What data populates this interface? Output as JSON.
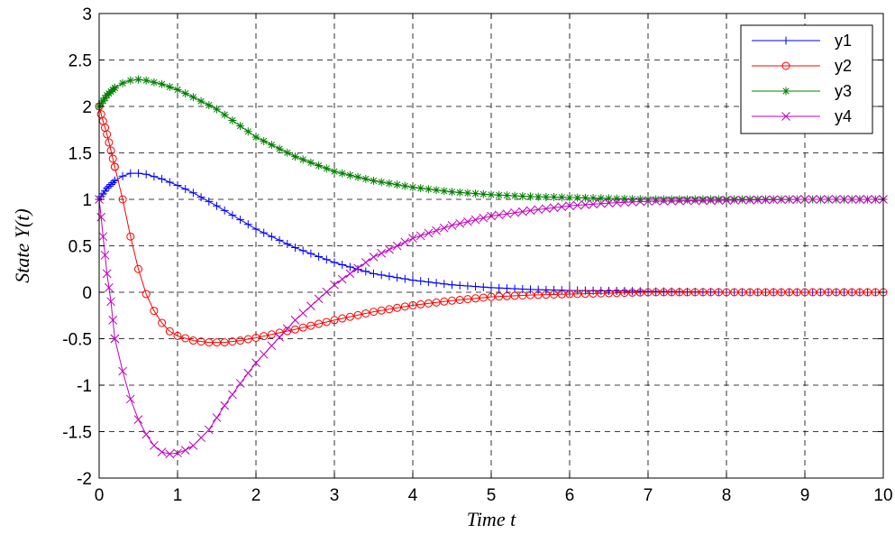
{
  "chart_data": {
    "type": "line",
    "title": "",
    "xlabel": "Time t",
    "ylabel": "State Y(t)",
    "xlim": [
      0,
      10
    ],
    "ylim": [
      -2,
      3
    ],
    "xticks": [
      0,
      1,
      2,
      3,
      4,
      5,
      6,
      7,
      8,
      9,
      10
    ],
    "yticks": [
      -2,
      -1.5,
      -1,
      -0.5,
      0,
      0.5,
      1,
      1.5,
      2,
      2.5,
      3
    ],
    "grid": true,
    "legend_position": "top-right",
    "series": [
      {
        "name": "y1",
        "color": "#0000ff",
        "marker": "plus",
        "points": [
          [
            0,
            1.0
          ],
          [
            0.1,
            1.12
          ],
          [
            0.2,
            1.2
          ],
          [
            0.3,
            1.25
          ],
          [
            0.4,
            1.28
          ],
          [
            0.5,
            1.28
          ],
          [
            0.6,
            1.27
          ],
          [
            0.8,
            1.22
          ],
          [
            1.0,
            1.15
          ],
          [
            1.2,
            1.07
          ],
          [
            1.5,
            0.93
          ],
          [
            2.0,
            0.68
          ],
          [
            2.5,
            0.48
          ],
          [
            3.0,
            0.32
          ],
          [
            3.5,
            0.2
          ],
          [
            4.0,
            0.13
          ],
          [
            4.5,
            0.08
          ],
          [
            5.0,
            0.05
          ],
          [
            5.5,
            0.03
          ],
          [
            6.0,
            0.02
          ],
          [
            7.0,
            0.01
          ],
          [
            8.0,
            0.0
          ],
          [
            9.0,
            0.0
          ],
          [
            10.0,
            0.0
          ]
        ]
      },
      {
        "name": "y2",
        "color": "#ff0000",
        "marker": "circle",
        "points": [
          [
            0,
            2.0
          ],
          [
            0.03,
            1.9
          ],
          [
            0.1,
            1.7
          ],
          [
            0.2,
            1.35
          ],
          [
            0.3,
            1.0
          ],
          [
            0.4,
            0.6
          ],
          [
            0.5,
            0.25
          ],
          [
            0.6,
            -0.02
          ],
          [
            0.7,
            -0.2
          ],
          [
            0.8,
            -0.33
          ],
          [
            0.9,
            -0.42
          ],
          [
            1.0,
            -0.47
          ],
          [
            1.2,
            -0.52
          ],
          [
            1.4,
            -0.54
          ],
          [
            1.6,
            -0.54
          ],
          [
            1.8,
            -0.52
          ],
          [
            2.0,
            -0.49
          ],
          [
            2.5,
            -0.4
          ],
          [
            3.0,
            -0.3
          ],
          [
            3.5,
            -0.21
          ],
          [
            4.0,
            -0.14
          ],
          [
            4.5,
            -0.09
          ],
          [
            5.0,
            -0.05
          ],
          [
            5.5,
            -0.03
          ],
          [
            6.0,
            -0.02
          ],
          [
            6.5,
            -0.01
          ],
          [
            7.0,
            0.0
          ],
          [
            8.0,
            0.0
          ],
          [
            9.0,
            0.0
          ],
          [
            10.0,
            0.0
          ]
        ]
      },
      {
        "name": "y3",
        "color": "#008000",
        "marker": "star",
        "points": [
          [
            0,
            2.0
          ],
          [
            0.1,
            2.12
          ],
          [
            0.2,
            2.2
          ],
          [
            0.3,
            2.25
          ],
          [
            0.4,
            2.28
          ],
          [
            0.5,
            2.29
          ],
          [
            0.6,
            2.28
          ],
          [
            0.8,
            2.24
          ],
          [
            1.0,
            2.18
          ],
          [
            1.2,
            2.1
          ],
          [
            1.5,
            1.97
          ],
          [
            2.0,
            1.67
          ],
          [
            2.5,
            1.46
          ],
          [
            3.0,
            1.3
          ],
          [
            3.5,
            1.2
          ],
          [
            4.0,
            1.13
          ],
          [
            4.5,
            1.08
          ],
          [
            5.0,
            1.05
          ],
          [
            5.5,
            1.03
          ],
          [
            6.0,
            1.02
          ],
          [
            7.0,
            1.0
          ],
          [
            8.0,
            1.0
          ],
          [
            9.0,
            1.0
          ],
          [
            10.0,
            1.0
          ]
        ]
      },
      {
        "name": "y4",
        "color": "#c000c0",
        "marker": "x",
        "points": [
          [
            0,
            1.0
          ],
          [
            0.02,
            0.85
          ],
          [
            0.05,
            0.6
          ],
          [
            0.1,
            0.2
          ],
          [
            0.15,
            -0.1
          ],
          [
            0.2,
            -0.5
          ],
          [
            0.3,
            -0.85
          ],
          [
            0.4,
            -1.15
          ],
          [
            0.5,
            -1.37
          ],
          [
            0.6,
            -1.53
          ],
          [
            0.7,
            -1.65
          ],
          [
            0.8,
            -1.72
          ],
          [
            0.9,
            -1.74
          ],
          [
            1.0,
            -1.73
          ],
          [
            1.1,
            -1.7
          ],
          [
            1.2,
            -1.65
          ],
          [
            1.4,
            -1.48
          ],
          [
            1.6,
            -1.22
          ],
          [
            1.8,
            -0.98
          ],
          [
            2.0,
            -0.76
          ],
          [
            2.5,
            -0.3
          ],
          [
            3.0,
            0.08
          ],
          [
            3.5,
            0.38
          ],
          [
            4.0,
            0.58
          ],
          [
            4.5,
            0.72
          ],
          [
            5.0,
            0.82
          ],
          [
            5.5,
            0.88
          ],
          [
            6.0,
            0.93
          ],
          [
            6.5,
            0.96
          ],
          [
            7.0,
            0.98
          ],
          [
            8.0,
            0.99
          ],
          [
            9.0,
            1.0
          ],
          [
            10.0,
            1.0
          ]
        ]
      }
    ]
  }
}
